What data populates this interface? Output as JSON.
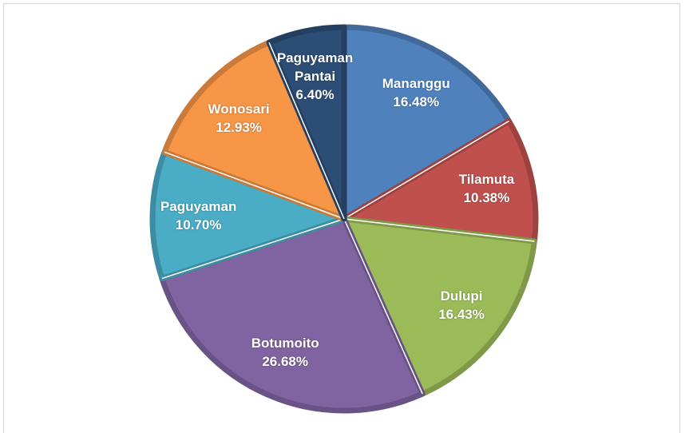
{
  "chart_data": {
    "type": "pie",
    "categories": [
      "Mananggu",
      "Tilamuta",
      "Dulupi",
      "Botumoito",
      "Paguyaman",
      "Wonosari",
      "Paguyaman Pantai"
    ],
    "values": [
      16.48,
      10.38,
      16.43,
      26.68,
      10.7,
      12.93,
      6.4
    ],
    "value_labels": [
      "16.48%",
      "10.38%",
      "16.43%",
      "26.68%",
      "10.70%",
      "12.93%",
      "6.40%"
    ],
    "colors": [
      "#4f81bd",
      "#c0504d",
      "#9bbb59",
      "#8064a2",
      "#4bacc6",
      "#f79646",
      "#2c4d75"
    ]
  }
}
